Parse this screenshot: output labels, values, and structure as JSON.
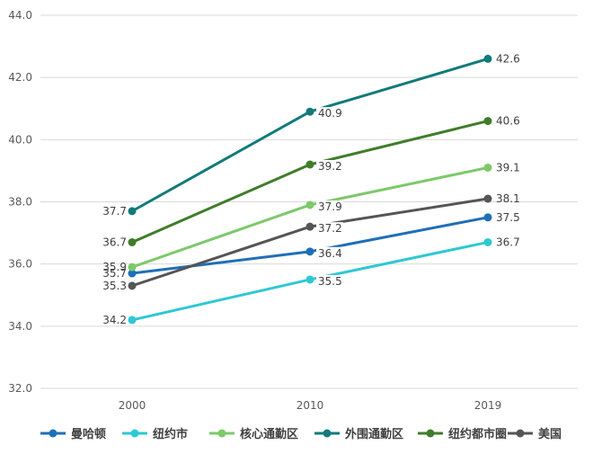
{
  "chart_data": {
    "type": "line",
    "categories": [
      "2000",
      "2010",
      "2019"
    ],
    "ylim": [
      32.0,
      44.0
    ],
    "yticks": [
      "32.0",
      "34.0",
      "36.0",
      "38.0",
      "40.0",
      "42.0",
      "44.0"
    ],
    "grid": true,
    "legend_position": "bottom",
    "series": [
      {
        "name": "曼哈顿",
        "color": "#1f6fb8",
        "values": [
          35.7,
          36.4,
          37.5
        ],
        "labels": [
          "35.7",
          "36.4",
          "37.5"
        ]
      },
      {
        "name": "纽约市",
        "color": "#2ec8d4",
        "values": [
          34.2,
          35.5,
          36.7
        ],
        "labels": [
          "34.2",
          "35.5",
          "36.7"
        ]
      },
      {
        "name": "核心通勤区",
        "color": "#7cc96a",
        "values": [
          35.9,
          37.9,
          39.1
        ],
        "labels": [
          "35.9",
          "37.9",
          "39.1"
        ]
      },
      {
        "name": "外围通勤区",
        "color": "#127a7a",
        "values": [
          37.7,
          40.9,
          42.6
        ],
        "labels": [
          "37.7",
          "40.9",
          "42.6"
        ]
      },
      {
        "name": "纽约都市圈",
        "color": "#3f7d2a",
        "values": [
          36.7,
          39.2,
          40.6
        ],
        "labels": [
          "36.7",
          "39.2",
          "40.6"
        ]
      },
      {
        "name": "美国",
        "color": "#555555",
        "values": [
          35.3,
          37.2,
          38.1
        ],
        "labels": [
          "35.3",
          "37.2",
          "38.1"
        ]
      }
    ]
  }
}
